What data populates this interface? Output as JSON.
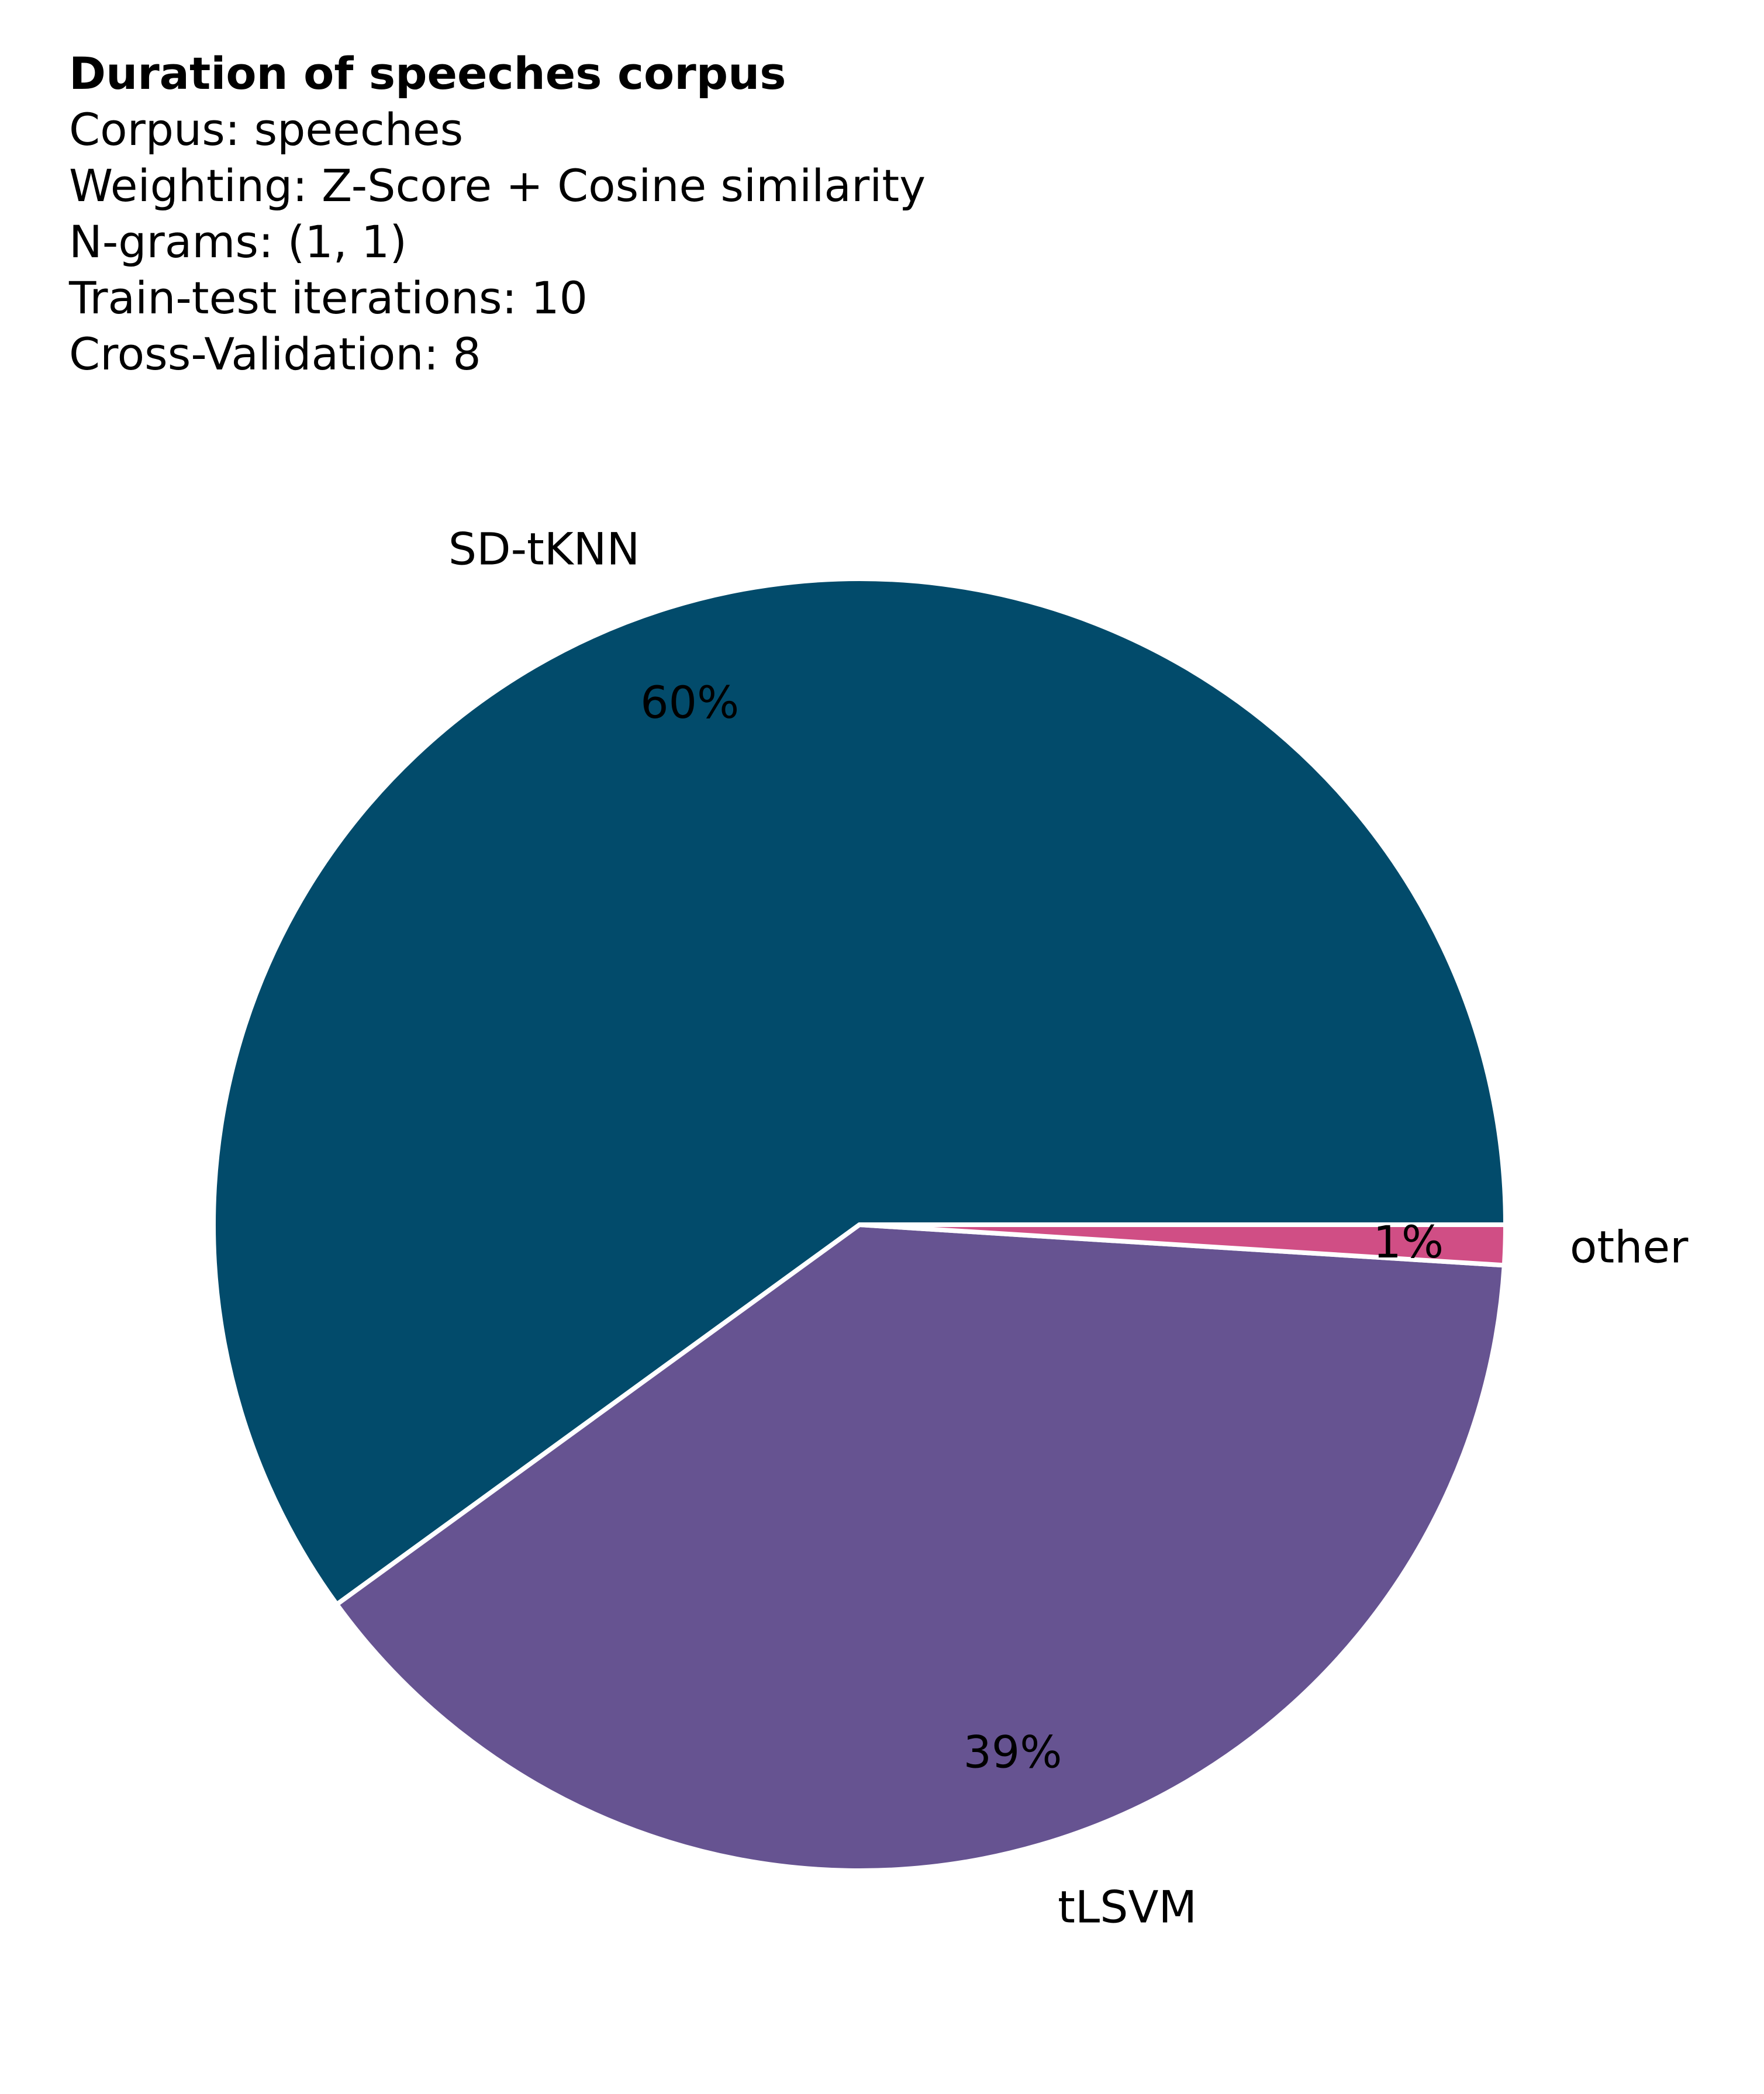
{
  "header": {
    "title": "Duration of speeches corpus",
    "lines": [
      "Corpus: speeches",
      "Weighting: Z-Score + Cosine similarity",
      "N-grams: (1, 1)",
      "Train-test iterations: 10",
      "Cross-Validation: 8"
    ]
  },
  "chart_data": {
    "type": "pie",
    "title": "Duration of speeches corpus",
    "labels": [
      "SD-tKNN",
      "tLSVM",
      "other"
    ],
    "values": [
      60,
      39,
      1
    ],
    "value_labels": [
      "60%",
      "39%",
      "1%"
    ],
    "colors": [
      "#024b6b",
      "#665391",
      "#d04e85"
    ],
    "start_angle_deg": 0,
    "direction": "counterclockwise",
    "legend": "none"
  }
}
